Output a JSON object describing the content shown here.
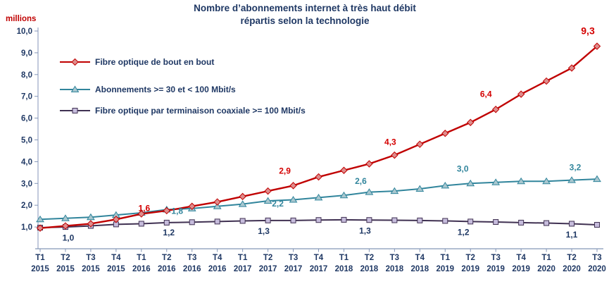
{
  "page": {
    "title_line1": "Nombre d’abonnements internet à très haut débit",
    "title_line2": "répartis selon la technologie",
    "unit_label": "millions"
  },
  "chart_data": {
    "type": "line",
    "title": "Nombre d’abonnements internet à très haut débit répartis selon la technologie",
    "unit": "millions",
    "grid": false,
    "legend_position": "inside-top-left",
    "ylim": [
      0,
      10
    ],
    "yticks": [
      {
        "value": 1,
        "label": "1,0"
      },
      {
        "value": 2,
        "label": "2,0"
      },
      {
        "value": 3,
        "label": "3,0"
      },
      {
        "value": 4,
        "label": "4,0"
      },
      {
        "value": 5,
        "label": "5,0"
      },
      {
        "value": 6,
        "label": "6,0"
      },
      {
        "value": 7,
        "label": "7,0"
      },
      {
        "value": 8,
        "label": "8,0"
      },
      {
        "value": 9,
        "label": "9,0"
      },
      {
        "value": 10,
        "label": "10,0"
      }
    ],
    "x_categories": [
      {
        "quarter": "T1",
        "year": "2015"
      },
      {
        "quarter": "T2",
        "year": "2015"
      },
      {
        "quarter": "T3",
        "year": "2015"
      },
      {
        "quarter": "T4",
        "year": "2015"
      },
      {
        "quarter": "T1",
        "year": "2016"
      },
      {
        "quarter": "T2",
        "year": "2016"
      },
      {
        "quarter": "T3",
        "year": "2016"
      },
      {
        "quarter": "T4",
        "year": "2016"
      },
      {
        "quarter": "T1",
        "year": "2017"
      },
      {
        "quarter": "T2",
        "year": "2017"
      },
      {
        "quarter": "T3",
        "year": "2017"
      },
      {
        "quarter": "T4",
        "year": "2017"
      },
      {
        "quarter": "T1",
        "year": "2018"
      },
      {
        "quarter": "T2",
        "year": "2018"
      },
      {
        "quarter": "T3",
        "year": "2018"
      },
      {
        "quarter": "T4",
        "year": "2018"
      },
      {
        "quarter": "T1",
        "year": "2019"
      },
      {
        "quarter": "T2",
        "year": "2019"
      },
      {
        "quarter": "T3",
        "year": "2019"
      },
      {
        "quarter": "T4",
        "year": "2019"
      },
      {
        "quarter": "T1",
        "year": "2020"
      },
      {
        "quarter": "T2",
        "year": "2020"
      },
      {
        "quarter": "T3",
        "year": "2020"
      }
    ],
    "series": [
      {
        "name": "Fibre optique de bout en bout",
        "color": "#c00000",
        "label_color": "#d40000",
        "marker": "diamond",
        "marker_fill": "#de8d8d",
        "values": [
          0.95,
          1.05,
          1.15,
          1.35,
          1.6,
          1.75,
          1.95,
          2.15,
          2.4,
          2.65,
          2.9,
          3.3,
          3.6,
          3.9,
          4.3,
          4.8,
          5.3,
          5.8,
          6.4,
          7.1,
          7.7,
          8.3,
          9.3
        ],
        "annotations": [
          {
            "index": 4,
            "text": "1,6",
            "dx": 4,
            "dy": -7
          },
          {
            "index": 10,
            "text": "2,9",
            "dx": -12,
            "dy": -20
          },
          {
            "index": 14,
            "text": "4,3",
            "dx": -6,
            "dy": -18
          },
          {
            "index": 18,
            "text": "6,4",
            "dx": -14,
            "dy": -21
          },
          {
            "index": 22,
            "text": "9,3",
            "dx": -13,
            "dy": -21,
            "size": 14
          }
        ]
      },
      {
        "name": "Abonnements >= 30 et < 100 Mbit/s",
        "color": "#31859c",
        "label_color": "#31859c",
        "marker": "triangle",
        "marker_fill": "#a9c7cf",
        "values": [
          1.35,
          1.4,
          1.45,
          1.55,
          1.65,
          1.8,
          1.85,
          1.95,
          2.05,
          2.2,
          2.25,
          2.35,
          2.45,
          2.6,
          2.65,
          2.75,
          2.9,
          3.0,
          3.05,
          3.1,
          3.1,
          3.15,
          3.2
        ],
        "annotations": [
          {
            "index": 5,
            "text": "1,8",
            "dx": 15,
            "dy": 3
          },
          {
            "index": 9,
            "text": "2,2",
            "dx": 14,
            "dy": 5
          },
          {
            "index": 13,
            "text": "2,6",
            "dx": -12,
            "dy": -15
          },
          {
            "index": 17,
            "text": "3,0",
            "dx": -11,
            "dy": -20
          },
          {
            "index": 22,
            "text": "3,2",
            "dx": -31,
            "dy": -16
          }
        ]
      },
      {
        "name": "Fibre optique par terminaison coaxiale >= 100 Mbit/s",
        "color": "#403152",
        "label_color": "#1f3864",
        "marker": "square",
        "marker_fill": "#c6bcdc",
        "values": [
          0.97,
          1.0,
          1.05,
          1.12,
          1.15,
          1.2,
          1.22,
          1.25,
          1.28,
          1.3,
          1.3,
          1.32,
          1.33,
          1.32,
          1.31,
          1.3,
          1.28,
          1.25,
          1.23,
          1.2,
          1.18,
          1.15,
          1.1
        ],
        "annotations": [
          {
            "index": 1,
            "text": "1,0",
            "dx": 4,
            "dy": 16
          },
          {
            "index": 5,
            "text": "1,2",
            "dx": 3,
            "dy": 15
          },
          {
            "index": 9,
            "text": "1,3",
            "dx": -6,
            "dy": 16
          },
          {
            "index": 13,
            "text": "1,3",
            "dx": -6,
            "dy": 16
          },
          {
            "index": 17,
            "text": "1,2",
            "dx": -10,
            "dy": 16
          },
          {
            "index": 22,
            "text": "1,1",
            "dx": -36,
            "dy": 15
          }
        ]
      }
    ]
  }
}
